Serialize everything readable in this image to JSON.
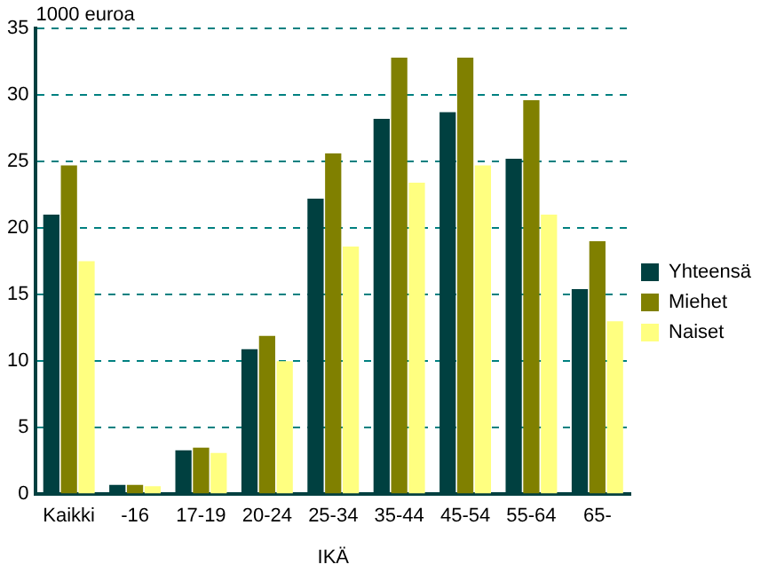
{
  "chart_data": {
    "type": "bar",
    "ylabel": "1000 euroa",
    "xlabel": "IKÄ",
    "categories": [
      "Kaikki",
      "-16",
      "17-19",
      "20-24",
      "25-34",
      "35-44",
      "45-54",
      "55-64",
      "65-"
    ],
    "series": [
      {
        "name": "Yhteensä",
        "color": "#004040",
        "values": [
          21.0,
          0.7,
          3.3,
          10.9,
          22.2,
          28.2,
          28.7,
          25.2,
          15.4
        ]
      },
      {
        "name": "Miehet",
        "color": "#808000",
        "values": [
          24.7,
          0.7,
          3.5,
          11.9,
          25.6,
          32.8,
          32.8,
          29.6,
          19.0
        ]
      },
      {
        "name": "Naiset",
        "color": "#ffff80",
        "values": [
          17.5,
          0.6,
          3.1,
          10.0,
          18.6,
          23.4,
          24.7,
          21.0,
          13.0
        ]
      }
    ],
    "ylim": [
      0,
      35
    ],
    "yticks": [
      0,
      5,
      10,
      15,
      20,
      25,
      30,
      35
    ],
    "grid": "y",
    "legend": "right"
  }
}
